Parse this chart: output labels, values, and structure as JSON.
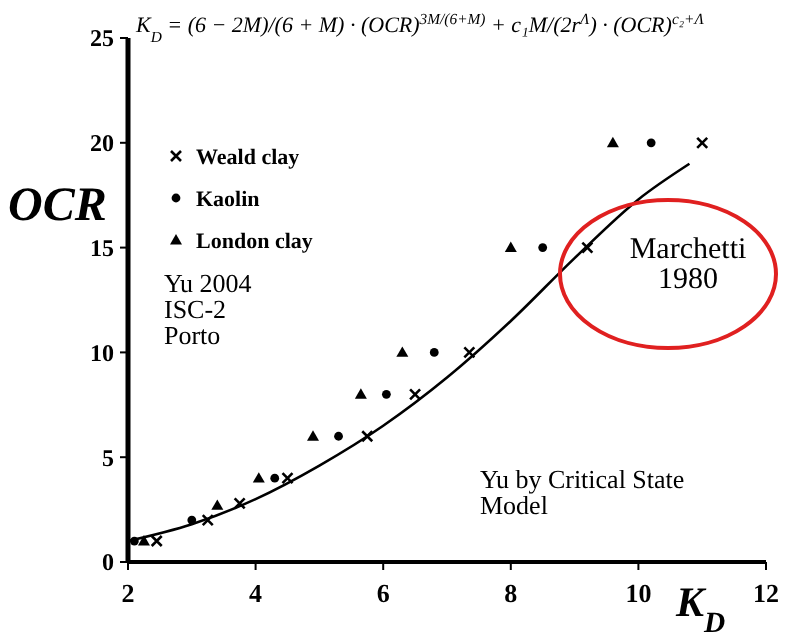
{
  "chart_data": {
    "type": "scatter",
    "title": "K$_{D}$ = (6 − 2M)/(6 + M) · (OCR)$^{3M/(6+M)}$ + c₁M/(2r$^{Λ}$) · (OCR)$^{c₂+Λ}$",
    "xlabel": "K$_{D}$",
    "ylabel": "OCR",
    "xlim": [
      2,
      12
    ],
    "xticks": [
      2,
      4,
      6,
      8,
      10,
      12
    ],
    "ylim": [
      0,
      25
    ],
    "yticks": [
      0,
      5,
      10,
      15,
      20,
      25
    ],
    "grid": false,
    "legend": "top left",
    "series": [
      {
        "name": "Weald clay",
        "color": "#000000",
        "marker": "cross",
        "x": [
          2.45,
          3.25,
          3.75,
          4.5,
          5.75,
          6.5,
          7.35,
          9.2,
          11
        ],
        "values": [
          1,
          2,
          2.8,
          4,
          6,
          8,
          10,
          15,
          20
        ]
      },
      {
        "name": "Kaolin",
        "color": "#000000",
        "marker": "circle",
        "x": [
          2.1,
          3.0,
          4.3,
          5.3,
          6.05,
          6.8,
          8.5,
          10.2
        ],
        "values": [
          1,
          2,
          4,
          6,
          8,
          10,
          15,
          20
        ]
      },
      {
        "name": "London clay",
        "color": "#000000",
        "marker": "triangle",
        "x": [
          2.25,
          3.4,
          4.05,
          4.9,
          5.65,
          6.3,
          8.0,
          9.6
        ],
        "values": [
          1,
          2.7,
          4,
          6,
          8,
          10,
          15,
          20
        ]
      },
      {
        "type": "line",
        "color": "#000000",
        "marker": "none",
        "x": [
          2,
          3,
          4,
          5,
          6,
          7,
          8,
          9,
          10,
          10.8
        ],
        "values": [
          1,
          1.8,
          3,
          4.6,
          6.5,
          8.8,
          11.5,
          14.5,
          17.3,
          19
        ]
      }
    ],
    "annotations": [
      "Yu 2004\nISC-2\nPorto",
      "Marchetti\n1980",
      "Yu by Critical State\nModel"
    ]
  }
}
